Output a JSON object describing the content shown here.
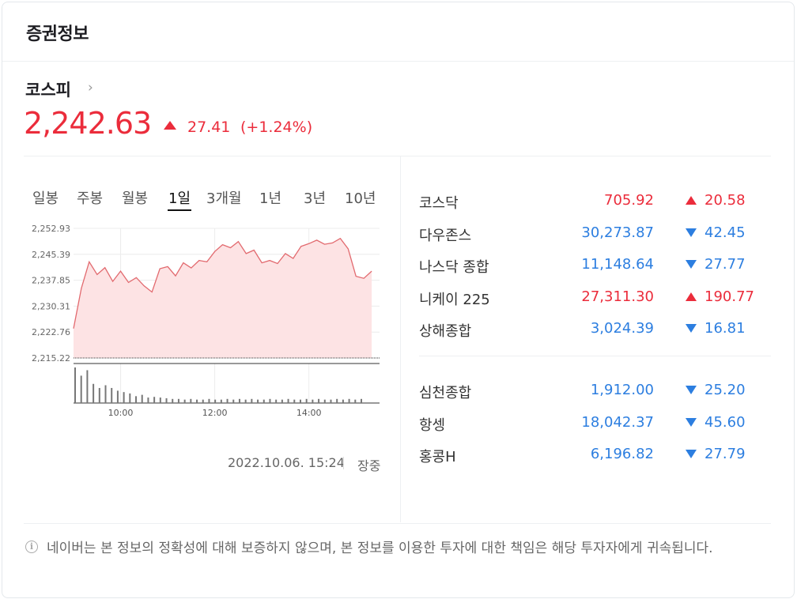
{
  "header": {
    "title": "증권정보"
  },
  "main_index": {
    "name": "코스피",
    "chevron": "›",
    "value": "2,242.63",
    "change": "27.41",
    "rate": "(+1.24%)",
    "direction": "up",
    "color": "#eb2c3b"
  },
  "tabs": [
    {
      "label": "일봉",
      "active": false
    },
    {
      "label": "주봉",
      "active": false
    },
    {
      "label": "월봉",
      "active": false
    },
    {
      "label": "1일",
      "active": true
    },
    {
      "label": "3개월",
      "active": false
    },
    {
      "label": "1년",
      "active": false
    },
    {
      "label": "3년",
      "active": false
    },
    {
      "label": "10년",
      "active": false
    }
  ],
  "chart_data": {
    "type": "area",
    "title": "",
    "xlabel": "",
    "ylabel": "",
    "y_ticks": [
      2252.93,
      2245.39,
      2237.85,
      2230.31,
      2222.76,
      2215.22
    ],
    "y_tick_labels": [
      "2,252.93",
      "2,245.39",
      "2,237.85",
      "2,230.31",
      "2,222.76",
      "2,215.22"
    ],
    "ylim": [
      2215.22,
      2252.93
    ],
    "x_tick_labels": [
      "10:00",
      "12:00",
      "14:00"
    ],
    "x_ticks_minutes": [
      600,
      720,
      840
    ],
    "xlim_minutes": [
      540,
      930
    ],
    "baseline": 2215.22,
    "grid": true,
    "series": [
      {
        "x": [
          540,
          550,
          560,
          570,
          580,
          590,
          600,
          610,
          620,
          630,
          640,
          650,
          660,
          670,
          680,
          690,
          700,
          710,
          720,
          730,
          740,
          750,
          760,
          770,
          780,
          790,
          800,
          810,
          820,
          830,
          840,
          850,
          860,
          870,
          880,
          890,
          900,
          910,
          920
        ],
        "y": [
          2223.8,
          2235.5,
          2243.2,
          2239.5,
          2241.5,
          2237.5,
          2240.5,
          2237.2,
          2238.6,
          2236.2,
          2234.4,
          2241.2,
          2241.8,
          2239.1,
          2242.9,
          2241.4,
          2243.6,
          2243.2,
          2246.2,
          2248.2,
          2247.3,
          2249.1,
          2245.6,
          2246.6,
          2242.9,
          2243.6,
          2242.7,
          2245.6,
          2244.2,
          2247.7,
          2248.5,
          2249.5,
          2248.3,
          2248.7,
          2250.0,
          2247.0,
          2239.0,
          2238.4,
          2240.5
        ]
      }
    ],
    "volume": [
      52,
      40,
      48,
      28,
      22,
      26,
      22,
      18,
      16,
      14,
      10,
      12,
      8,
      9,
      8,
      7,
      6,
      6,
      5,
      6,
      5,
      5,
      6,
      5,
      5,
      6,
      5,
      6,
      5,
      6,
      5,
      5,
      6,
      5,
      5,
      6,
      5,
      5,
      6,
      5,
      6,
      5,
      5,
      6,
      5,
      6,
      5,
      6
    ]
  },
  "timestamp": "2022.10.06. 15:24",
  "market_status": "장중",
  "indices_group1": [
    {
      "name": "코스닥",
      "value": "705.92",
      "change": "20.58",
      "direction": "up"
    },
    {
      "name": "다우존스",
      "value": "30,273.87",
      "change": "42.45",
      "direction": "down"
    },
    {
      "name": "나스닥 종합",
      "value": "11,148.64",
      "change": "27.77",
      "direction": "down"
    },
    {
      "name": "니케이 225",
      "value": "27,311.30",
      "change": "190.77",
      "direction": "up"
    },
    {
      "name": "상해종합",
      "value": "3,024.39",
      "change": "16.81",
      "direction": "down"
    }
  ],
  "indices_group2": [
    {
      "name": "심천종합",
      "value": "1,912.00",
      "change": "25.20",
      "direction": "down"
    },
    {
      "name": "항셍",
      "value": "18,042.37",
      "change": "45.60",
      "direction": "down"
    },
    {
      "name": "홍콩H",
      "value": "6,196.82",
      "change": "27.79",
      "direction": "down"
    }
  ],
  "colors": {
    "up": "#eb2c3b",
    "down": "#2c7ee0",
    "area_fill": "#fde3e4",
    "line": "#e26a6f"
  },
  "icons": {
    "info": "info-circle-icon",
    "chevron": "chevron-right-icon"
  },
  "disclaimer": "네이버는 본 정보의 정확성에 대해 보증하지 않으며, 본 정보를 이용한 투자에 대한 책임은 해당 투자자에게 귀속됩니다."
}
